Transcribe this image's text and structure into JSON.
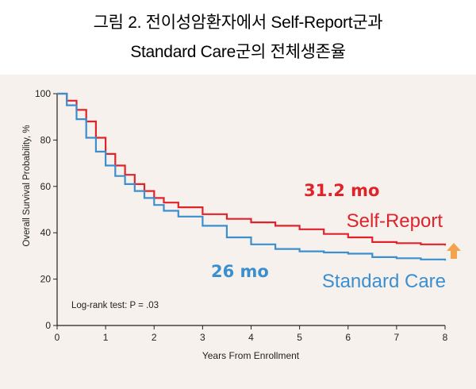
{
  "figure": {
    "title_line1": "그림 2. 전이성암환자에서 Self-Report군과",
    "title_line2": "Standard Care군의 전체생존율"
  },
  "annotations": {
    "self_report_median": "31.2 mo",
    "standard_median": "26 mo",
    "logrank": "Log-rank test: P = .03"
  },
  "colors": {
    "self_report": "#e0232a",
    "standard_care": "#3b8fcf",
    "arrow": "#f3a250",
    "panel": "#f6f1ec"
  },
  "icons": {
    "arrow": "up-arrow-icon"
  },
  "chart_data": {
    "type": "line",
    "title": "",
    "xlabel": "Years From Enrollment",
    "ylabel": "Overall Survival Probability, %",
    "xlim": [
      0,
      8
    ],
    "ylim": [
      0,
      100
    ],
    "xticks": [
      0,
      1,
      2,
      3,
      4,
      5,
      6,
      7,
      8
    ],
    "yticks": [
      0,
      20,
      40,
      60,
      80,
      100
    ],
    "grid": false,
    "legend": "inline labels",
    "series": [
      {
        "name": "Self-Report",
        "x": [
          0,
          0.2,
          0.4,
          0.6,
          0.8,
          1.0,
          1.2,
          1.4,
          1.6,
          1.8,
          2.0,
          2.2,
          2.5,
          3.0,
          3.5,
          4.0,
          4.5,
          5.0,
          5.5,
          6.0,
          6.5,
          7.0,
          7.5,
          8.0
        ],
        "y": [
          100,
          97,
          93,
          88,
          81,
          74,
          69,
          65,
          61,
          58,
          55,
          53,
          51,
          48,
          46,
          44.5,
          43,
          41.5,
          39.5,
          38,
          36,
          35.5,
          35,
          34.5
        ]
      },
      {
        "name": "Standard Care",
        "x": [
          0,
          0.2,
          0.4,
          0.6,
          0.8,
          1.0,
          1.2,
          1.4,
          1.6,
          1.8,
          2.0,
          2.2,
          2.5,
          3.0,
          3.5,
          4.0,
          4.5,
          5.0,
          5.5,
          6.0,
          6.5,
          7.0,
          7.5,
          8.0
        ],
        "y": [
          100,
          95,
          89,
          81,
          75,
          69,
          64.5,
          61,
          58,
          55,
          52,
          49.5,
          47,
          43,
          38,
          35,
          33,
          32,
          31.5,
          31,
          29.5,
          29,
          28.5,
          28
        ]
      }
    ]
  }
}
